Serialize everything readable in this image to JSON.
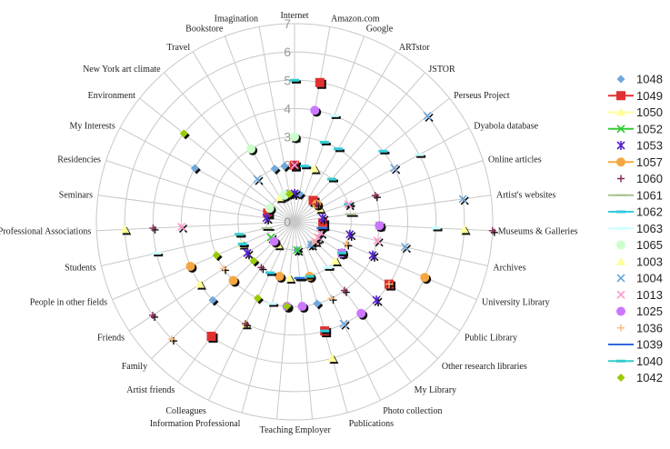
{
  "chart_data": {
    "type": "radar",
    "rmax": 7,
    "ticks": [
      0,
      1,
      2,
      3,
      4,
      5,
      6,
      7
    ],
    "categories": [
      "Internet",
      "Amazon.com",
      "Google",
      "ARTstor",
      "JSTOR",
      "Perseus Project",
      "Dyabola database",
      "Online articles",
      "Artist's websites",
      "Museums & Galleries",
      "Archives",
      "University Library",
      "Public Library",
      "Other research libraries",
      "My Library",
      "Photo collection",
      "Publications",
      "Employer",
      "Teaching",
      "Information Professional",
      "Colleagues",
      "Artist friends",
      "Family",
      "Friends",
      "People in other fields",
      "Students",
      "Professional Associations",
      "Seminars",
      "Residencies",
      "My Interests",
      "Environment",
      "New York art climate",
      "Travel",
      "Bookstore",
      "Imagination"
    ],
    "legend_position": "right",
    "series": [
      {
        "name": "1048",
        "color": "#6fa8dc",
        "marker": "diamond",
        "points": [
          [
            0,
            1
          ],
          [
            1,
            1
          ],
          [
            9,
            1
          ],
          [
            10,
            1
          ],
          [
            14,
            1
          ],
          [
            16,
            3
          ],
          [
            17,
            1
          ],
          [
            22,
            4
          ],
          [
            29,
            4
          ],
          [
            33,
            2
          ],
          [
            34,
            2
          ]
        ]
      },
      {
        "name": "1049",
        "color": "#e03030",
        "marker": "square",
        "points": [
          [
            0,
            2
          ],
          [
            1,
            5
          ],
          [
            4,
            1
          ],
          [
            9,
            1
          ],
          [
            12,
            4
          ],
          [
            16,
            4
          ],
          [
            21,
            5
          ],
          [
            28,
            1
          ]
        ]
      },
      {
        "name": "1050",
        "color": "#ffff99",
        "marker": "triangle",
        "points": [
          [
            0,
            3
          ],
          [
            2,
            2
          ],
          [
            6,
            1
          ],
          [
            9,
            6
          ],
          [
            13,
            2
          ],
          [
            16,
            5
          ],
          [
            18,
            2
          ],
          [
            20,
            4
          ],
          [
            24,
            2
          ],
          [
            26,
            6
          ],
          [
            32,
            1
          ]
        ]
      },
      {
        "name": "1052",
        "color": "#33cc33",
        "marker": "x",
        "points": [
          [
            9,
            3
          ],
          [
            11,
            1
          ],
          [
            17,
            1
          ],
          [
            23,
            1
          ]
        ]
      },
      {
        "name": "1053",
        "color": "#5522cc",
        "marker": "star",
        "points": [
          [
            0,
            1
          ],
          [
            8,
            1
          ],
          [
            10,
            2
          ],
          [
            11,
            3
          ],
          [
            12,
            2
          ],
          [
            13,
            4
          ],
          [
            23,
            2
          ],
          [
            27,
            1
          ]
        ]
      },
      {
        "name": "1057",
        "color": "#f5a742",
        "marker": "circle",
        "points": [
          [
            5,
            1
          ],
          [
            11,
            5
          ],
          [
            16,
            2
          ],
          [
            19,
            2
          ],
          [
            22,
            3
          ],
          [
            24,
            4
          ]
        ]
      },
      {
        "name": "1060",
        "color": "#8b2252",
        "marker": "plus",
        "points": [
          [
            0,
            2
          ],
          [
            5,
            1
          ],
          [
            7,
            3
          ],
          [
            9,
            7
          ],
          [
            11,
            2
          ],
          [
            14,
            3
          ],
          [
            20,
            4
          ],
          [
            21,
            2
          ],
          [
            23,
            6
          ],
          [
            26,
            5
          ]
        ]
      },
      {
        "name": "1061",
        "color": "#a8c090",
        "marker": "line",
        "points": [
          [
            8,
            2
          ],
          [
            13,
            1
          ],
          [
            25,
            1
          ]
        ]
      },
      {
        "name": "1062",
        "color": "#33ccdd",
        "marker": "dash",
        "points": [
          [
            1,
            2
          ],
          [
            3,
            3
          ],
          [
            5,
            4
          ],
          [
            7,
            2
          ],
          [
            9,
            3
          ],
          [
            10,
            1
          ],
          [
            16,
            4
          ],
          [
            17,
            2
          ],
          [
            20,
            2
          ],
          [
            24,
            2
          ],
          [
            25,
            2
          ]
        ]
      },
      {
        "name": "1063",
        "color": "#ccffff",
        "marker": "dash",
        "points": [
          [
            0,
            5
          ],
          [
            2,
            4
          ],
          [
            6,
            5
          ],
          [
            9,
            5
          ],
          [
            14,
            2
          ],
          [
            19,
            3
          ],
          [
            25,
            5
          ]
        ]
      },
      {
        "name": "1065",
        "color": "#ccffcc",
        "marker": "circle",
        "points": [
          [
            0,
            3
          ],
          [
            29,
            1
          ],
          [
            32,
            3
          ],
          [
            33,
            1
          ]
        ]
      },
      {
        "name": "1003",
        "color": "#ffff99",
        "marker": "triangle",
        "points": [
          [
            13,
            1
          ],
          [
            21,
            1
          ],
          [
            23,
            4
          ]
        ]
      },
      {
        "name": "1004",
        "color": "#6fa8dc",
        "marker": "x",
        "points": [
          [
            5,
            6
          ],
          [
            6,
            4
          ],
          [
            8,
            6
          ],
          [
            10,
            4
          ],
          [
            14,
            1
          ],
          [
            15,
            4
          ],
          [
            31,
            2
          ]
        ]
      },
      {
        "name": "1013",
        "color": "#ff99cc",
        "marker": "x",
        "points": [
          [
            0,
            2
          ],
          [
            7,
            2
          ],
          [
            10,
            3
          ],
          [
            11,
            1
          ],
          [
            12,
            1
          ],
          [
            13,
            1
          ],
          [
            26,
            4
          ]
        ]
      },
      {
        "name": "1025",
        "color": "#cc77ff",
        "marker": "circle",
        "points": [
          [
            1,
            4
          ],
          [
            9,
            3
          ],
          [
            12,
            2
          ],
          [
            14,
            4
          ],
          [
            17,
            3
          ],
          [
            18,
            3
          ],
          [
            22,
            1
          ]
        ]
      },
      {
        "name": "1036",
        "color": "#ffbb77",
        "marker": "plus",
        "points": [
          [
            11,
            2
          ],
          [
            12,
            4
          ],
          [
            15,
            3
          ],
          [
            22,
            6
          ],
          [
            23,
            3
          ]
        ]
      },
      {
        "name": "1039",
        "color": "#3366dd",
        "marker": "line",
        "points": [
          [
            10,
            1
          ],
          [
            17,
            2
          ]
        ]
      },
      {
        "name": "1040",
        "color": "#33cccc",
        "marker": "dash",
        "points": [
          [
            0,
            5
          ],
          [
            2,
            3
          ],
          [
            4,
            2
          ],
          [
            12,
            2
          ],
          [
            16,
            2
          ],
          [
            25,
            2
          ]
        ]
      },
      {
        "name": "1042",
        "color": "#99cc00",
        "marker": "diamond",
        "points": [
          [
            18,
            3
          ],
          [
            22,
            2
          ],
          [
            24,
            3
          ],
          [
            30,
            5
          ],
          [
            34,
            1
          ],
          [
            20,
            3
          ]
        ]
      }
    ]
  }
}
